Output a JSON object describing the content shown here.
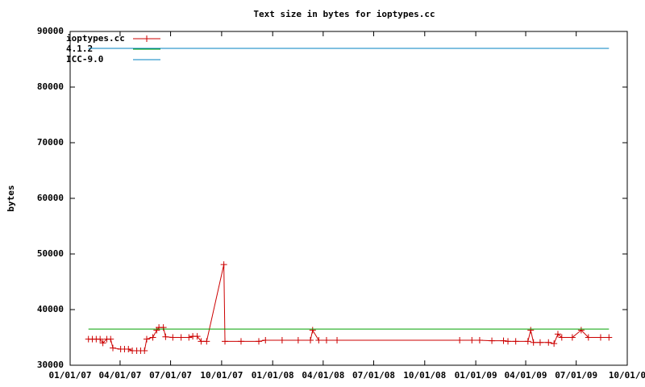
{
  "chart_data": {
    "type": "line",
    "title": "Text size in bytes for ioptypes.cc",
    "ylabel": "bytes",
    "xlim": [
      "2007-01-01",
      "2009-10-01"
    ],
    "xticks": [
      {
        "value": "2007-01-01",
        "label": "01/01/07"
      },
      {
        "value": "2007-04-01",
        "label": "04/01/07"
      },
      {
        "value": "2007-07-01",
        "label": "07/01/07"
      },
      {
        "value": "2007-10-01",
        "label": "10/01/07"
      },
      {
        "value": "2008-01-01",
        "label": "01/01/08"
      },
      {
        "value": "2008-04-01",
        "label": "04/01/08"
      },
      {
        "value": "2008-07-01",
        "label": "07/01/08"
      },
      {
        "value": "2008-10-01",
        "label": "10/01/08"
      },
      {
        "value": "2009-01-01",
        "label": "01/01/09"
      },
      {
        "value": "2009-04-01",
        "label": "04/01/09"
      },
      {
        "value": "2009-07-01",
        "label": "07/01/09"
      },
      {
        "value": "2009-10-01",
        "label": "10/01/0"
      }
    ],
    "ylim": [
      30000,
      90000
    ],
    "yticks": [
      30000,
      40000,
      50000,
      60000,
      70000,
      80000,
      90000
    ],
    "legend": "top-left",
    "series": [
      {
        "name": "ioptypes.cc",
        "color": "#cc0000",
        "marker": "+",
        "x": [
          "2007-02-03",
          "2007-02-10",
          "2007-02-17",
          "2007-02-24",
          "2007-03-01",
          "2007-03-08",
          "2007-03-15",
          "2007-03-19",
          "2007-04-02",
          "2007-04-09",
          "2007-04-16",
          "2007-04-23",
          "2007-05-01",
          "2007-05-08",
          "2007-05-15",
          "2007-05-19",
          "2007-05-30",
          "2007-06-06",
          "2007-06-10",
          "2007-06-18",
          "2007-06-22",
          "2007-07-05",
          "2007-07-20",
          "2007-08-03",
          "2007-08-10",
          "2007-08-18",
          "2007-08-25",
          "2007-09-04",
          "2007-10-05",
          "2007-10-07",
          "2007-11-05",
          "2007-12-07",
          "2007-12-19",
          "2008-01-18",
          "2008-02-16",
          "2008-03-09",
          "2008-03-13",
          "2008-03-24",
          "2008-04-07",
          "2008-04-26",
          "2008-12-03",
          "2008-12-25",
          "2009-01-08",
          "2009-01-30",
          "2009-02-20",
          "2009-02-28",
          "2009-03-14",
          "2009-04-05",
          "2009-04-10",
          "2009-04-15",
          "2009-04-27",
          "2009-05-12",
          "2009-05-22",
          "2009-05-29",
          "2009-06-05",
          "2009-06-24",
          "2009-07-10",
          "2009-07-23",
          "2009-08-14",
          "2009-08-29"
        ],
        "values": [
          34700,
          34700,
          34700,
          34700,
          34000,
          34700,
          34700,
          33100,
          32900,
          32900,
          32900,
          32600,
          32600,
          32600,
          32600,
          34700,
          35000,
          36300,
          36800,
          36800,
          35100,
          35000,
          35000,
          35000,
          35200,
          35200,
          34300,
          34300,
          48100,
          34300,
          34300,
          34300,
          34500,
          34500,
          34500,
          34500,
          36300,
          34500,
          34500,
          34500,
          34500,
          34500,
          34500,
          34400,
          34400,
          34300,
          34300,
          34300,
          36300,
          34100,
          34100,
          34100,
          33900,
          35600,
          35000,
          35000,
          36300,
          35000,
          35000,
          35000
        ]
      },
      {
        "name": "4.1.2",
        "color": "#00a000",
        "x": [
          "2007-02-03",
          "2009-08-29"
        ],
        "values": [
          36500,
          36500
        ]
      },
      {
        "name": "ICC-9.0",
        "color": "#0080c0",
        "x": [
          "2007-02-03",
          "2009-08-29"
        ],
        "values": [
          86950,
          86950
        ]
      }
    ]
  }
}
